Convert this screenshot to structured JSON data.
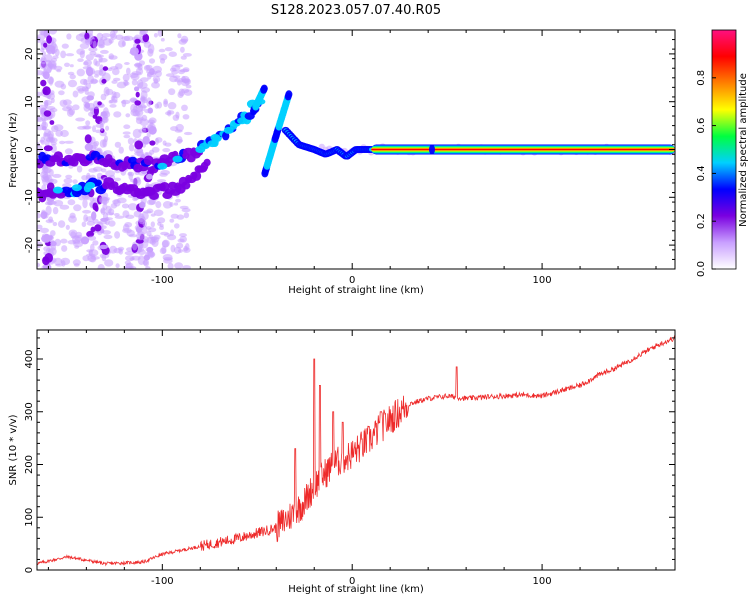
{
  "title": "S128.2023.057.07.40.R05",
  "chart_data": [
    {
      "type": "heatmap",
      "xlabel": "Height of straight line (km)",
      "ylabel": "Frequency (Hz)",
      "xlim": [
        -166,
        170
      ],
      "ylim": [
        -25,
        25
      ],
      "xticks": [
        -100,
        0,
        100
      ],
      "yticks": [
        -20,
        -10,
        0,
        10,
        20
      ],
      "colorbar": {
        "label": "Normalized spectral amplitude",
        "range": [
          0,
          1
        ],
        "ticks": [
          "0.0",
          "0.2",
          "0.4",
          "0.6",
          "0.8"
        ],
        "colors": [
          "#ffffff",
          "#c9a0ff",
          "#7a00e0",
          "#0000ff",
          "#00d0ff",
          "#00ff40",
          "#ffff00",
          "#ff8000",
          "#ff0000",
          "#ff1080"
        ]
      },
      "features": {
        "carrier_line": {
          "frequency_hz": 0,
          "x_start": 10,
          "x_end": 170,
          "amplitude": 0.9
        },
        "doppler_trace_upper": [
          [
            -166,
            -2.5
          ],
          [
            -140,
            -1.5
          ],
          [
            -110,
            -3.5
          ],
          [
            -90,
            -2
          ],
          [
            -75,
            1
          ],
          [
            -60,
            5
          ],
          [
            -48,
            11
          ]
        ],
        "doppler_trace_lower": [
          [
            -166,
            -9.5
          ],
          [
            -150,
            -8.5
          ],
          [
            -130,
            -7.5
          ],
          [
            -110,
            -9
          ],
          [
            -95,
            -8.5
          ],
          [
            -85,
            -6
          ],
          [
            -75,
            -3
          ]
        ],
        "transition_trace": [
          [
            -35,
            4
          ],
          [
            -28,
            1
          ],
          [
            -20,
            0
          ],
          [
            -14,
            -1
          ],
          [
            -8,
            0
          ],
          [
            -3,
            -1.5
          ],
          [
            2,
            0
          ],
          [
            10,
            0
          ]
        ]
      }
    },
    {
      "type": "line",
      "xlabel": "Height of straight line (km)",
      "ylabel": "SNR (10 * v/v)",
      "xlim": [
        -166,
        170
      ],
      "ylim": [
        0,
        455
      ],
      "xticks": [
        -100,
        0,
        100
      ],
      "yticks": [
        0,
        100,
        200,
        300,
        400
      ],
      "color": "#ee2a2a",
      "x": [
        -166,
        -150,
        -130,
        -110,
        -100,
        -80,
        -60,
        -50,
        -40,
        -30,
        -25,
        -20,
        -15,
        -10,
        -5,
        0,
        5,
        10,
        15,
        20,
        25,
        30,
        40,
        50,
        60,
        70,
        80,
        90,
        100,
        110,
        120,
        130,
        140,
        150,
        160,
        170
      ],
      "y": [
        12,
        25,
        12,
        15,
        30,
        45,
        60,
        70,
        80,
        110,
        130,
        160,
        180,
        200,
        210,
        220,
        235,
        250,
        270,
        285,
        300,
        315,
        325,
        330,
        325,
        328,
        330,
        332,
        330,
        340,
        350,
        370,
        385,
        405,
        425,
        440
      ],
      "spikes": [
        [
          -30,
          230
        ],
        [
          -20,
          400
        ],
        [
          -17,
          350
        ],
        [
          -10,
          300
        ],
        [
          -5,
          280
        ],
        [
          15,
          300
        ],
        [
          55,
          385
        ]
      ]
    }
  ]
}
